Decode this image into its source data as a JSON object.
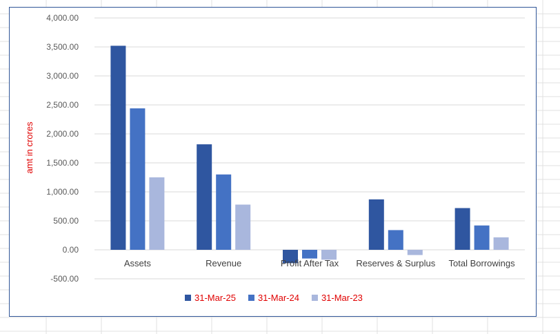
{
  "chart_data": {
    "type": "bar",
    "ylabel": "amt in crores",
    "categories": [
      "Assets",
      "Revenue",
      "Profit After Tax",
      "Reserves & Surplus",
      "Total Borrowings"
    ],
    "series": [
      {
        "name": "31-Mar-25",
        "color": "#2f56a0",
        "values": [
          3520,
          1820,
          -230,
          870,
          720
        ]
      },
      {
        "name": "31-Mar-24",
        "color": "#4472c4",
        "values": [
          2440,
          1300,
          -150,
          340,
          420
        ]
      },
      {
        "name": "31-Mar-23",
        "color": "#a9b7dd",
        "values": [
          1250,
          780,
          -170,
          -90,
          215
        ]
      }
    ],
    "ylim": [
      -500,
      4000
    ],
    "yticks": [
      4000,
      3500,
      3000,
      2500,
      2000,
      1500,
      1000,
      500,
      0,
      -500
    ],
    "ytick_labels": [
      "4,000.00",
      "3,500.00",
      "3,000.00",
      "2,500.00",
      "2,000.00",
      "1,500.00",
      "1,000.00",
      "500.00",
      "0.00",
      "-500.00"
    ],
    "grid": true,
    "legend_position": "bottom",
    "ylabel_color": "#e00000",
    "legend_text_color": "#e00000"
  }
}
